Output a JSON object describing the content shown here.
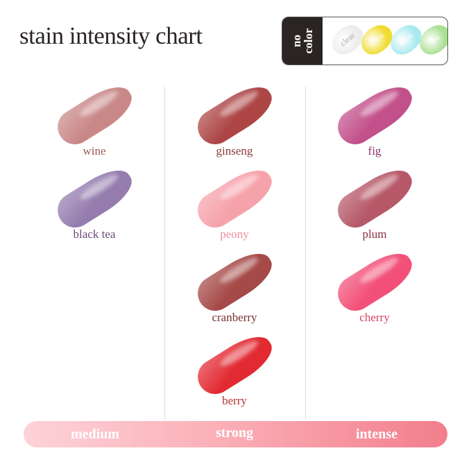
{
  "title": "stain intensity chart",
  "no_color": {
    "label": "no\ncolor",
    "shades": [
      {
        "name": "clear",
        "color": "#ececec",
        "text": "#aaaaaa"
      },
      {
        "name": "coco",
        "color": "#f0dc30",
        "text": "#ffffff"
      },
      {
        "name": "mint",
        "color": "#a8eaf0",
        "text": "#ffffff"
      },
      {
        "name": "tea",
        "color": "#a8e090",
        "text": "#ffffff"
      }
    ]
  },
  "columns": [
    {
      "shades": [
        {
          "name": "wine",
          "color": "#c98888",
          "text": "#a05858"
        },
        {
          "name": "black tea",
          "color": "#957cae",
          "text": "#6a4a7a"
        }
      ]
    },
    {
      "shades": [
        {
          "name": "ginseng",
          "color": "#ad4545",
          "text": "#8a3838"
        },
        {
          "name": "peony",
          "color": "#f6a2ab",
          "text": "#ec8e9c"
        },
        {
          "name": "cranberry",
          "color": "#a54a48",
          "text": "#7a3030"
        },
        {
          "name": "berry",
          "color": "#e22a32",
          "text": "#b83030"
        }
      ]
    },
    {
      "shades": [
        {
          "name": "fig",
          "color": "#c2508a",
          "text": "#8a3060"
        },
        {
          "name": "plum",
          "color": "#b65868",
          "text": "#8a3040"
        },
        {
          "name": "cherry",
          "color": "#f25078",
          "text": "#d84060"
        }
      ]
    }
  ],
  "intensity_bar": [
    "medium",
    "strong",
    "intense"
  ]
}
